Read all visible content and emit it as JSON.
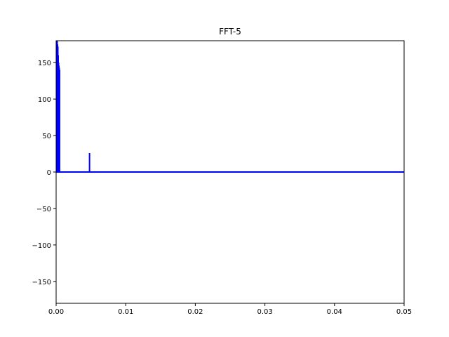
{
  "chart_data": {
    "type": "line",
    "title": "FFT-5",
    "xlabel": "",
    "ylabel": "",
    "xlim": [
      0.0,
      0.05
    ],
    "ylim": [
      -180,
      180
    ],
    "grid": false,
    "legend": "none",
    "xticks": [
      0.0,
      0.01,
      0.02,
      0.03,
      0.04,
      0.05
    ],
    "xtick_labels": [
      "0.00",
      "0.01",
      "0.02",
      "0.03",
      "0.04",
      "0.05"
    ],
    "yticks": [
      -150,
      -100,
      -50,
      0,
      50,
      100,
      150
    ],
    "ytick_labels": [
      "−150",
      "−100",
      "−50",
      "0",
      "50",
      "100",
      "150"
    ],
    "series": [
      {
        "color": "#0000ff",
        "x": [
          5e-05,
          0.0001,
          0.00015,
          0.0002,
          0.00025,
          0.0003,
          0.00035,
          0.0004,
          0.00045,
          0.0005,
          0.0048,
          0.05
        ],
        "y": [
          180,
          180,
          180,
          175,
          172,
          160,
          150,
          146,
          143,
          140,
          26,
          0
        ]
      }
    ]
  }
}
